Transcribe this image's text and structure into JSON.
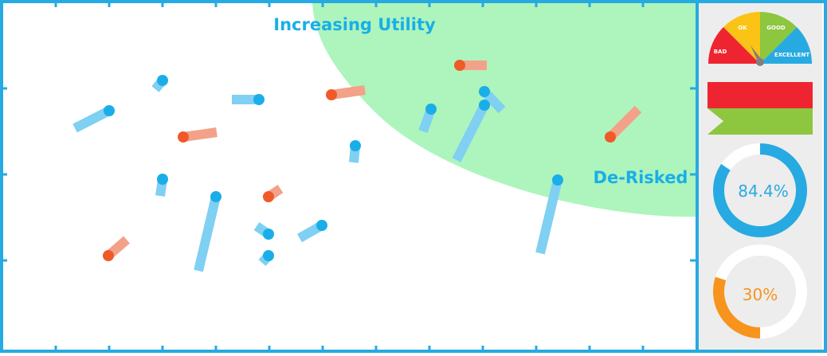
{
  "labels": {
    "increasing_utility": "Increasing Utility",
    "de_risked": "De-Risked"
  },
  "gauge": {
    "segments": [
      "BAD",
      "OK",
      "GOOD",
      "EXCELLENT"
    ],
    "colors": [
      "#ee2530",
      "#fbc315",
      "#8dc63f",
      "#27aae1"
    ]
  },
  "donuts": [
    {
      "value_label": "84.4%",
      "value": 84.4,
      "color": "#27aae1",
      "track": "#ffffff"
    },
    {
      "value_label": "30%",
      "value": 30,
      "color": "#f7941d",
      "track": "#ffffff"
    }
  ],
  "colors": {
    "frame": "#27aae1",
    "region": "#adf5bd",
    "blue": "#1aaee8",
    "blue_trail": "#7fd0f3",
    "orange": "#f05a28",
    "orange_trail": "#f4a18a",
    "panel": "#ededed",
    "flag_red": "#ee2530",
    "flag_green": "#8dc63f"
  }
}
